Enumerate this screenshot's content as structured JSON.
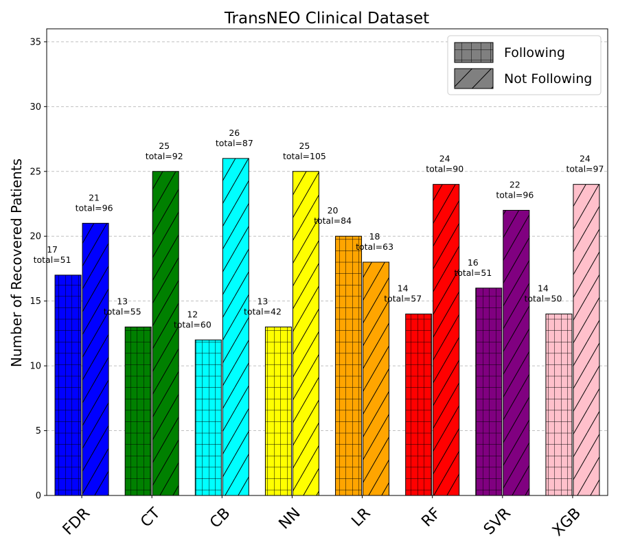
{
  "chart_data": {
    "type": "bar",
    "title": "TransNEO Clinical Dataset",
    "xlabel": "",
    "ylabel": "Number of Recovered Patients",
    "ylim": [
      0,
      36
    ],
    "yticks": [
      0,
      5,
      10,
      15,
      20,
      25,
      30,
      35
    ],
    "grid": "y-dashed",
    "legend_position": "top-right",
    "categories": [
      "FDR",
      "CT",
      "CB",
      "NN",
      "LR",
      "RF",
      "SVR",
      "XGB"
    ],
    "category_colors": [
      "#0000ff",
      "#008000",
      "#00ffff",
      "#ffff00",
      "#ffa500",
      "#ff0000",
      "#800080",
      "#ffc0cb"
    ],
    "series": [
      {
        "name": "Following",
        "hatch": "grid",
        "values": [
          17,
          13,
          12,
          13,
          20,
          14,
          16,
          14
        ],
        "totals": [
          51,
          55,
          60,
          42,
          84,
          57,
          51,
          50
        ]
      },
      {
        "name": "Not Following",
        "hatch": "diagonal",
        "values": [
          21,
          25,
          26,
          25,
          18,
          24,
          22,
          24
        ],
        "totals": [
          96,
          92,
          87,
          105,
          63,
          90,
          96,
          97
        ]
      }
    ],
    "total_prefix": "total="
  }
}
